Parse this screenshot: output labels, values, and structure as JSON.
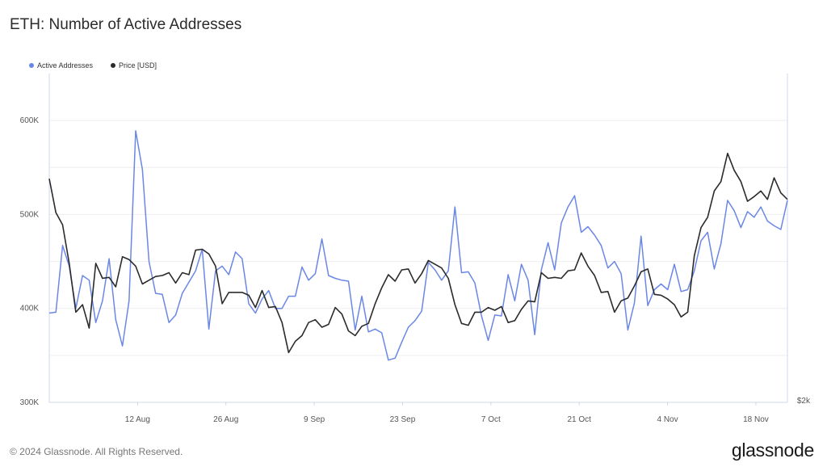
{
  "header": {
    "title": "ETH: Number of Active Addresses"
  },
  "footer": {
    "copyright": "© 2024 Glassnode. All Rights Reserved.",
    "brand": "glassnode"
  },
  "colors": {
    "active_addresses": "#6b87e6",
    "price": "#2b2b2b",
    "grid": "#eeeeee",
    "axis": "#cfd8ea"
  },
  "chart_data": {
    "type": "line",
    "title": "ETH: Number of Active Addresses",
    "legend_position": "top-left",
    "grid": true,
    "x_start": "2024-07-29",
    "x_end": "2024-11-23",
    "x_ticks": [
      "12 Aug",
      "26 Aug",
      "9 Sep",
      "23 Sep",
      "7 Oct",
      "21 Oct",
      "4 Nov",
      "18 Nov"
    ],
    "y_left": {
      "ticks": [
        "300K",
        "400K",
        "500K",
        "600K"
      ],
      "ylim": [
        300000,
        650000
      ]
    },
    "y_right": {
      "ticks": [
        "$2k"
      ]
    },
    "series": [
      {
        "name": "Active Addresses",
        "axis": "left",
        "values": [
          395000,
          396000,
          467000,
          445000,
          400000,
          435000,
          430000,
          385000,
          408000,
          453000,
          388000,
          360000,
          408000,
          589000,
          548000,
          450000,
          416000,
          415000,
          385000,
          393000,
          416000,
          428000,
          440000,
          463000,
          378000,
          440000,
          445000,
          436000,
          460000,
          453000,
          405000,
          395000,
          410000,
          419000,
          400000,
          400000,
          413000,
          413000,
          444000,
          430000,
          437000,
          474000,
          435000,
          432000,
          430000,
          429000,
          377000,
          413000,
          375000,
          378000,
          374000,
          345000,
          347000,
          364000,
          380000,
          387000,
          397000,
          449000,
          441000,
          430000,
          440000,
          508000,
          438000,
          439000,
          427000,
          392000,
          366000,
          393000,
          392000,
          436000,
          408000,
          447000,
          430000,
          372000,
          441000,
          470000,
          441000,
          491000,
          508000,
          520000,
          481000,
          487000,
          478000,
          467000,
          443000,
          450000,
          437000,
          377000,
          406000,
          477000,
          403000,
          420000,
          426000,
          420000,
          447000,
          418000,
          420000,
          440000,
          472000,
          481000,
          442000,
          469000,
          515000,
          504000,
          486000,
          503000,
          497000,
          508000,
          493000,
          488000,
          484000,
          515000
        ],
        "color": "#6b87e6"
      },
      {
        "name": "Price [USD]",
        "axis": "right",
        "values": [
          538000,
          502000,
          489000,
          448000,
          396000,
          404000,
          379000,
          448000,
          432000,
          433000,
          423000,
          455000,
          452000,
          445000,
          426000,
          430000,
          434000,
          435000,
          438000,
          427000,
          438000,
          436000,
          462000,
          463000,
          458000,
          445000,
          405000,
          417000,
          417000,
          417000,
          414000,
          401000,
          419000,
          401000,
          402000,
          385000,
          353000,
          365000,
          371000,
          385000,
          388000,
          380000,
          383000,
          401000,
          394000,
          376000,
          371000,
          381000,
          384000,
          405000,
          422000,
          436000,
          429000,
          441000,
          442000,
          427000,
          437000,
          451000,
          447000,
          443000,
          432000,
          404000,
          384000,
          382000,
          396000,
          396000,
          401000,
          398000,
          402000,
          385000,
          387000,
          399000,
          408000,
          407000,
          438000,
          432000,
          433000,
          432000,
          440000,
          441000,
          459000,
          445000,
          435000,
          417000,
          418000,
          396000,
          408000,
          411000,
          424000,
          439000,
          442000,
          415000,
          414000,
          410000,
          404000,
          391000,
          396000,
          456000,
          486000,
          497000,
          525000,
          535000,
          565000,
          547000,
          535000,
          514000,
          519000,
          525000,
          516000,
          539000,
          523000,
          516000
        ],
        "color": "#2b2b2b"
      }
    ]
  }
}
